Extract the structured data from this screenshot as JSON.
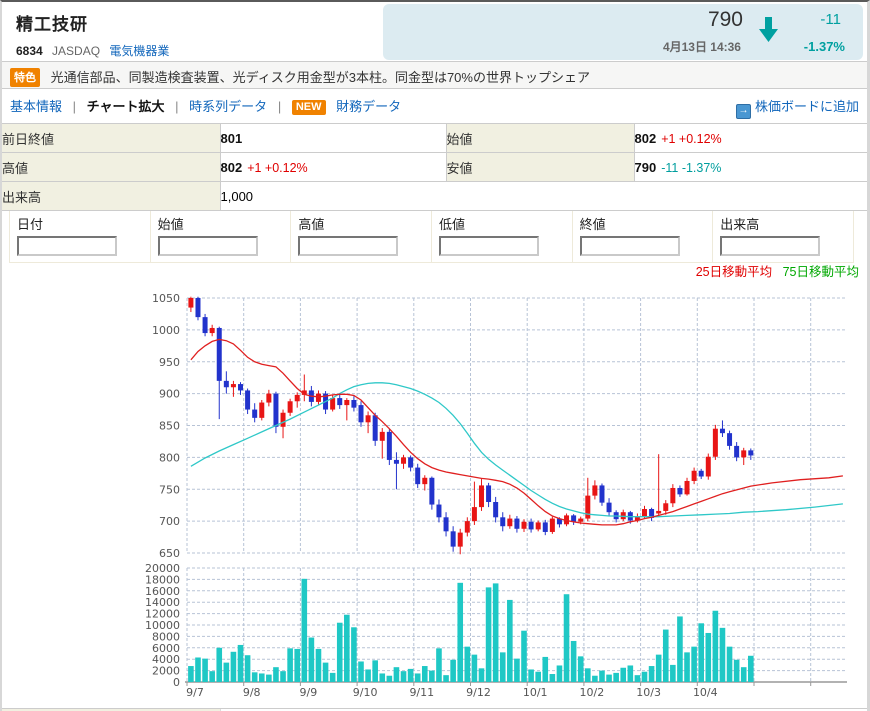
{
  "header": {
    "company_name": "精工技研",
    "code": "6834",
    "market": "JASDAQ",
    "sector": "電気機器業",
    "price": "790",
    "datetime": "4月13日 14:36",
    "change": "-11",
    "change_pct": "-1.37%",
    "direction": "down",
    "colors": {
      "negative": "#00a0a0",
      "positive": "#e00000",
      "panel_bg": "#dcebf1"
    }
  },
  "feature": {
    "badge": "特色",
    "text": "光通信部品、同製造検査装置、光ディスク用金型が3本柱。同金型は70%の世界トップシェア"
  },
  "nav": {
    "separator": "|",
    "new_badge": "NEW",
    "items": [
      {
        "label": "基本情報"
      },
      {
        "label": "チャート拡大"
      },
      {
        "label": "時系列データ"
      },
      {
        "label": "財務データ"
      }
    ],
    "board_link": "株価ボードに追加"
  },
  "quote_table": {
    "rows": [
      {
        "l1": "前日終値",
        "v1": "801",
        "c1": "",
        "l2": "始値",
        "v2": "802",
        "c2": "+1 +0.12%"
      },
      {
        "l1": "高値",
        "v1": "802",
        "c1": "+1 +0.12%",
        "l2": "安値",
        "v2": "790",
        "c2": "-11 -1.37%"
      },
      {
        "l1": "出来高",
        "v1": "1,000"
      }
    ]
  },
  "form": {
    "fields": [
      {
        "label": "日付",
        "value": ""
      },
      {
        "label": "始値",
        "value": ""
      },
      {
        "label": "高値",
        "value": ""
      },
      {
        "label": "低値",
        "value": ""
      },
      {
        "label": "終値",
        "value": ""
      },
      {
        "label": "出来高",
        "value": ""
      }
    ]
  },
  "legend": {
    "ma25_label": "25日移動平均",
    "ma25_text_color": "#e00000",
    "ma75_label": "75日移動平均",
    "ma75_text_color": "#00a800"
  },
  "chart_data": {
    "type": "candlestick+volume",
    "x_labels": [
      "9/7",
      "9/8",
      "9/9",
      "9/10",
      "9/11",
      "9/12",
      "10/1",
      "10/2",
      "10/3",
      "10/4"
    ],
    "bars_per_day": 8,
    "price_axis": {
      "min": 650,
      "max": 1050,
      "step": 50
    },
    "volume_axis": {
      "min": 0,
      "max": 20000,
      "step": 2000
    },
    "colors": {
      "up": "#e81515",
      "down": "#2233cc",
      "volume": "#1fc8c5",
      "grid": "#b7c3d6",
      "axis_text": "#555555",
      "axis_line": "#999999"
    },
    "candles": [
      [
        1035,
        1052,
        1028,
        1050
      ],
      [
        1050,
        1052,
        1015,
        1020
      ],
      [
        1020,
        1025,
        990,
        995
      ],
      [
        995,
        1008,
        990,
        1003
      ],
      [
        1003,
        1005,
        860,
        920
      ],
      [
        920,
        935,
        900,
        910
      ],
      [
        910,
        920,
        895,
        915
      ],
      [
        915,
        918,
        898,
        905
      ],
      [
        905,
        908,
        868,
        875
      ],
      [
        875,
        885,
        855,
        862
      ],
      [
        862,
        890,
        858,
        886
      ],
      [
        886,
        906,
        880,
        900
      ],
      [
        900,
        903,
        838,
        848
      ],
      [
        848,
        875,
        830,
        870
      ],
      [
        870,
        892,
        865,
        888
      ],
      [
        888,
        902,
        878,
        898
      ],
      [
        898,
        930,
        888,
        905
      ],
      [
        905,
        912,
        880,
        887
      ],
      [
        887,
        905,
        883,
        900
      ],
      [
        900,
        904,
        868,
        875
      ],
      [
        875,
        898,
        872,
        893
      ],
      [
        893,
        900,
        876,
        882
      ],
      [
        882,
        893,
        858,
        890
      ],
      [
        890,
        896,
        872,
        878
      ],
      [
        882,
        888,
        848,
        855
      ],
      [
        855,
        872,
        838,
        866
      ],
      [
        866,
        870,
        818,
        826
      ],
      [
        826,
        846,
        798,
        840
      ],
      [
        840,
        844,
        788,
        796
      ],
      [
        796,
        808,
        750,
        790
      ],
      [
        790,
        804,
        782,
        800
      ],
      [
        800,
        803,
        778,
        784
      ],
      [
        784,
        790,
        752,
        758
      ],
      [
        758,
        772,
        748,
        768
      ],
      [
        768,
        770,
        718,
        726
      ],
      [
        726,
        734,
        698,
        706
      ],
      [
        706,
        714,
        676,
        684
      ],
      [
        684,
        692,
        652,
        660
      ],
      [
        660,
        688,
        648,
        682
      ],
      [
        682,
        706,
        676,
        700
      ],
      [
        700,
        762,
        694,
        722
      ],
      [
        722,
        766,
        716,
        756
      ],
      [
        756,
        760,
        722,
        730
      ],
      [
        730,
        738,
        698,
        706
      ],
      [
        706,
        714,
        684,
        692
      ],
      [
        692,
        710,
        688,
        704
      ],
      [
        704,
        708,
        682,
        688
      ],
      [
        688,
        703,
        683,
        699
      ],
      [
        699,
        704,
        682,
        687
      ],
      [
        687,
        701,
        684,
        698
      ],
      [
        698,
        702,
        678,
        683
      ],
      [
        683,
        707,
        680,
        704
      ],
      [
        704,
        706,
        690,
        695
      ],
      [
        695,
        712,
        692,
        709
      ],
      [
        709,
        711,
        694,
        699
      ],
      [
        699,
        707,
        695,
        704
      ],
      [
        704,
        768,
        700,
        740
      ],
      [
        740,
        764,
        734,
        756
      ],
      [
        756,
        759,
        724,
        729
      ],
      [
        729,
        736,
        708,
        714
      ],
      [
        714,
        717,
        698,
        703
      ],
      [
        703,
        718,
        700,
        714
      ],
      [
        714,
        716,
        696,
        701
      ],
      [
        701,
        712,
        698,
        708
      ],
      [
        708,
        724,
        704,
        719
      ],
      [
        719,
        721,
        700,
        705
      ],
      [
        712,
        805,
        708,
        716
      ],
      [
        716,
        733,
        710,
        728
      ],
      [
        728,
        758,
        722,
        752
      ],
      [
        752,
        756,
        738,
        742
      ],
      [
        742,
        768,
        740,
        763
      ],
      [
        763,
        784,
        758,
        779
      ],
      [
        779,
        782,
        766,
        770
      ],
      [
        770,
        806,
        765,
        801
      ],
      [
        801,
        851,
        796,
        845
      ],
      [
        845,
        858,
        832,
        838
      ],
      [
        838,
        842,
        812,
        818
      ],
      [
        818,
        824,
        794,
        800
      ],
      [
        800,
        815,
        788,
        811
      ],
      [
        811,
        814,
        796,
        803
      ]
    ],
    "volumes": [
      2800,
      4300,
      4100,
      1900,
      6000,
      3400,
      5300,
      6500,
      4700,
      1700,
      1500,
      1300,
      2600,
      1900,
      5900,
      5800,
      18100,
      7800,
      5800,
      3400,
      1600,
      10400,
      11800,
      9600,
      3600,
      2200,
      3800,
      1500,
      1100,
      2600,
      1900,
      2300,
      1500,
      2800,
      2000,
      5900,
      1200,
      3900,
      17400,
      6200,
      4800,
      2400,
      16600,
      17300,
      5200,
      14400,
      4100,
      9000,
      2200,
      1800,
      4400,
      1400,
      2900,
      15400,
      7200,
      4500,
      2400,
      1100,
      2000,
      1300,
      1600,
      2500,
      2900,
      1200,
      1800,
      2800,
      4800,
      9200,
      3000,
      11500,
      5200,
      6200,
      10300,
      8600,
      12500,
      9500,
      6200,
      3900,
      2600,
      4600
    ],
    "ma25": {
      "label": "25日移動平均",
      "color": "#e02020",
      "points": [
        [
          0,
          953
        ],
        [
          1,
          966
        ],
        [
          2,
          975
        ],
        [
          3,
          982
        ],
        [
          4,
          985
        ],
        [
          5,
          983
        ],
        [
          6,
          978
        ],
        [
          7,
          968
        ],
        [
          8,
          957
        ],
        [
          9,
          950
        ],
        [
          10,
          946
        ],
        [
          11,
          944
        ],
        [
          12,
          942
        ],
        [
          13,
          932
        ],
        [
          14,
          920
        ],
        [
          15,
          908
        ],
        [
          16,
          899
        ],
        [
          17,
          896
        ],
        [
          18,
          895
        ],
        [
          19,
          896
        ],
        [
          20,
          898
        ],
        [
          21,
          899
        ],
        [
          22,
          899
        ],
        [
          23,
          897
        ],
        [
          24,
          890
        ],
        [
          25,
          878
        ],
        [
          26,
          866
        ],
        [
          27,
          856
        ],
        [
          28,
          845
        ],
        [
          29,
          833
        ],
        [
          30,
          820
        ],
        [
          31,
          808
        ],
        [
          32,
          798
        ],
        [
          33,
          790
        ],
        [
          34,
          784
        ],
        [
          35,
          780
        ],
        [
          36,
          777
        ],
        [
          37,
          775
        ],
        [
          38,
          773
        ],
        [
          39,
          771
        ],
        [
          40,
          769
        ],
        [
          41,
          767
        ],
        [
          42,
          766
        ],
        [
          43,
          764
        ],
        [
          44,
          762
        ],
        [
          45,
          758
        ],
        [
          46,
          752
        ],
        [
          47,
          744
        ],
        [
          48,
          734
        ],
        [
          49,
          724
        ],
        [
          50,
          715
        ],
        [
          51,
          708
        ],
        [
          52,
          704
        ],
        [
          53,
          701
        ],
        [
          54,
          699
        ],
        [
          55,
          697
        ],
        [
          56,
          696
        ],
        [
          57,
          695
        ],
        [
          58,
          694
        ],
        [
          59,
          694
        ],
        [
          60,
          694
        ],
        [
          61,
          696
        ],
        [
          62,
          699
        ],
        [
          63,
          701
        ],
        [
          64,
          704
        ],
        [
          65,
          706
        ],
        [
          66,
          709
        ],
        [
          67,
          712
        ],
        [
          68,
          715
        ],
        [
          69,
          719
        ],
        [
          70,
          723
        ],
        [
          71,
          727
        ],
        [
          72,
          731
        ],
        [
          73,
          735
        ],
        [
          74,
          739
        ],
        [
          75,
          743
        ],
        [
          76,
          746
        ],
        [
          77,
          749
        ],
        [
          78,
          752
        ],
        [
          79,
          755
        ],
        [
          82,
          760
        ],
        [
          86,
          765
        ],
        [
          90,
          768
        ],
        [
          92,
          771
        ]
      ]
    },
    "ma75": {
      "label": "75日移動平均",
      "color": "#2fc8c8",
      "points": [
        [
          0,
          786
        ],
        [
          2,
          799
        ],
        [
          4,
          810
        ],
        [
          6,
          820
        ],
        [
          8,
          830
        ],
        [
          10,
          840
        ],
        [
          12,
          850
        ],
        [
          14,
          860
        ],
        [
          16,
          871
        ],
        [
          18,
          882
        ],
        [
          20,
          893
        ],
        [
          21,
          900
        ],
        [
          22,
          906
        ],
        [
          23,
          911
        ],
        [
          24,
          914
        ],
        [
          25,
          916
        ],
        [
          26,
          917
        ],
        [
          27,
          917
        ],
        [
          28,
          916
        ],
        [
          29,
          914
        ],
        [
          30,
          911
        ],
        [
          31,
          908
        ],
        [
          32,
          904
        ],
        [
          33,
          899
        ],
        [
          34,
          893
        ],
        [
          35,
          886
        ],
        [
          36,
          877
        ],
        [
          37,
          866
        ],
        [
          38,
          853
        ],
        [
          39,
          838
        ],
        [
          40,
          822
        ],
        [
          41,
          808
        ],
        [
          42,
          797
        ],
        [
          43,
          788
        ],
        [
          44,
          780
        ],
        [
          45,
          772
        ],
        [
          46,
          764
        ],
        [
          47,
          756
        ],
        [
          48,
          748
        ],
        [
          49,
          741
        ],
        [
          50,
          734
        ],
        [
          51,
          728
        ],
        [
          52,
          723
        ],
        [
          53,
          719
        ],
        [
          54,
          716
        ],
        [
          55,
          713
        ],
        [
          56,
          711
        ],
        [
          57,
          710
        ],
        [
          58,
          709
        ],
        [
          59,
          708
        ],
        [
          60,
          708
        ],
        [
          62,
          707
        ],
        [
          64,
          707
        ],
        [
          66,
          707
        ],
        [
          68,
          708
        ],
        [
          70,
          709
        ],
        [
          72,
          710
        ],
        [
          74,
          711
        ],
        [
          76,
          712
        ],
        [
          78,
          714
        ],
        [
          80,
          715
        ],
        [
          84,
          718
        ],
        [
          88,
          722
        ],
        [
          92,
          727
        ]
      ]
    }
  }
}
